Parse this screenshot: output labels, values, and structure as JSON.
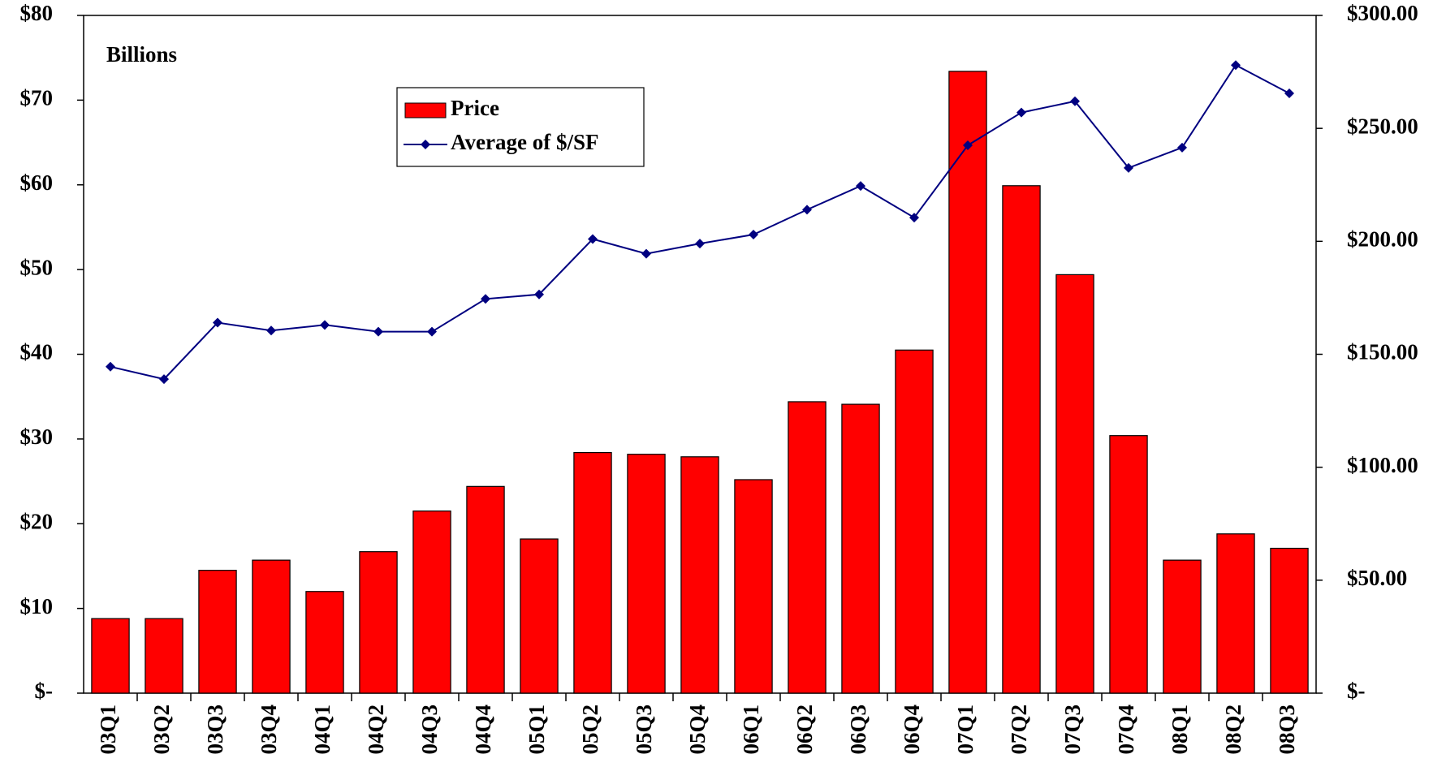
{
  "chart_data": {
    "type": "bar-line",
    "annotation": "Billions",
    "categories": [
      "03Q1",
      "03Q2",
      "03Q3",
      "03Q4",
      "04Q1",
      "04Q2",
      "04Q3",
      "04Q4",
      "05Q1",
      "05Q2",
      "05Q3",
      "05Q4",
      "06Q1",
      "06Q2",
      "06Q3",
      "06Q4",
      "07Q1",
      "07Q2",
      "07Q3",
      "07Q4",
      "08Q1",
      "08Q2",
      "08Q3"
    ],
    "series": [
      {
        "name": "Price",
        "type": "bar",
        "color": "#ff0000",
        "values": [
          8.8,
          8.8,
          14.5,
          15.7,
          12,
          16.7,
          21.5,
          24.4,
          18.2,
          28.4,
          28.2,
          27.9,
          25.2,
          34.4,
          34.1,
          40.5,
          73.4,
          59.9,
          49.4,
          30.4,
          15.7,
          18.8,
          17.1
        ]
      },
      {
        "name": "Average of $/SF",
        "type": "line",
        "axis": "y2",
        "color": "#000080",
        "values": [
          144.5,
          139,
          164,
          160.5,
          163,
          160,
          160,
          174.5,
          176.5,
          201,
          194.5,
          199,
          203,
          214,
          224.5,
          210.5,
          242.5,
          257,
          262,
          232.5,
          241.5,
          278,
          265.5
        ]
      }
    ],
    "ylim": [
      0,
      80
    ],
    "yticks": [
      {
        "value": 0,
        "label": "$-"
      },
      {
        "value": 10,
        "label": "$10"
      },
      {
        "value": 20,
        "label": "$20"
      },
      {
        "value": 30,
        "label": "$30"
      },
      {
        "value": 40,
        "label": "$40"
      },
      {
        "value": 50,
        "label": "$50"
      },
      {
        "value": 60,
        "label": "$60"
      },
      {
        "value": 70,
        "label": "$70"
      },
      {
        "value": 80,
        "label": "$80"
      }
    ],
    "y2lim": [
      0,
      300
    ],
    "y2ticks": [
      {
        "value": 0,
        "label": "$-"
      },
      {
        "value": 50,
        "label": "$50.00"
      },
      {
        "value": 100,
        "label": "$100.00"
      },
      {
        "value": 150,
        "label": "$150.00"
      },
      {
        "value": 200,
        "label": "$200.00"
      },
      {
        "value": 250,
        "label": "$250.00"
      },
      {
        "value": 300,
        "label": "$300.00"
      }
    ],
    "grid": false
  }
}
